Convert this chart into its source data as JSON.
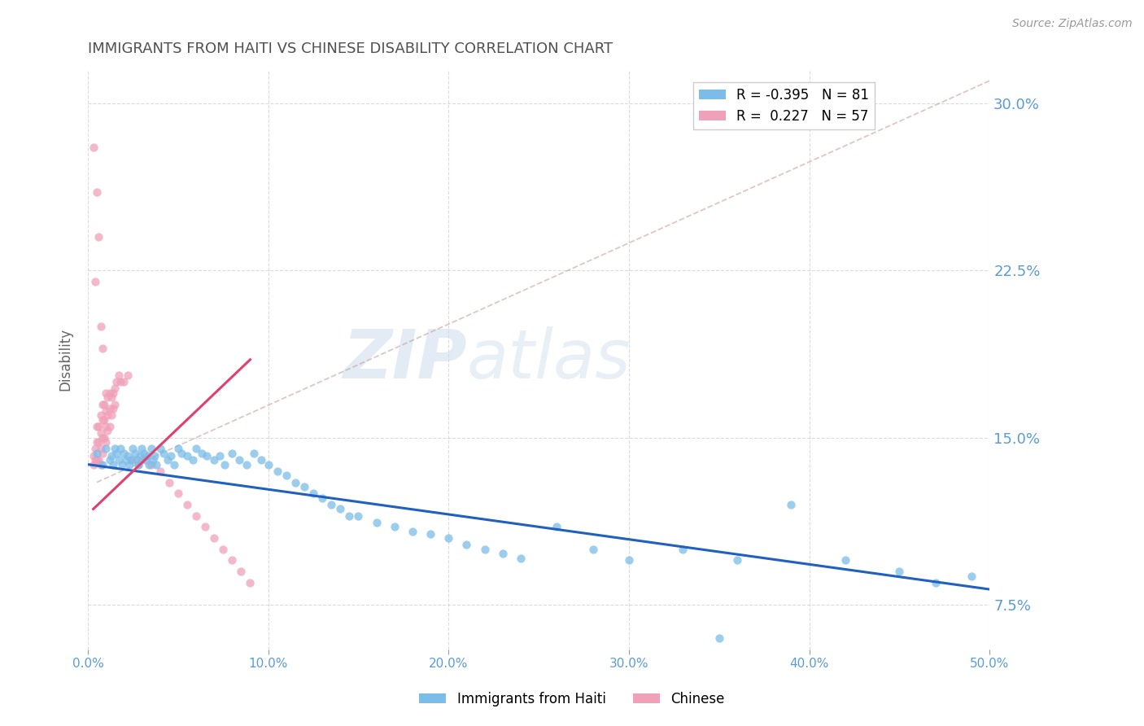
{
  "title": "IMMIGRANTS FROM HAITI VS CHINESE DISABILITY CORRELATION CHART",
  "source": "Source: ZipAtlas.com",
  "xlabel_haiti": "Immigrants from Haiti",
  "xlabel_chinese": "Chinese",
  "ylabel": "Disability",
  "xlim": [
    0.0,
    0.5
  ],
  "ylim": [
    0.055,
    0.315
  ],
  "xticks": [
    0.0,
    0.1,
    0.2,
    0.3,
    0.4,
    0.5
  ],
  "yticks": [
    0.075,
    0.15,
    0.225,
    0.3
  ],
  "ytick_labels": [
    "7.5%",
    "15.0%",
    "22.5%",
    "30.0%"
  ],
  "xtick_labels": [
    "0.0%",
    "10.0%",
    "20.0%",
    "30.0%",
    "40.0%",
    "50.0%"
  ],
  "haiti_color": "#7bbde8",
  "chinese_color": "#f0a0b8",
  "haiti_line_color": "#2060c0",
  "chinese_line_color": "#e04070",
  "R_haiti": -0.395,
  "N_haiti": 81,
  "R_chinese": 0.227,
  "N_chinese": 57,
  "haiti_scatter_x": [
    0.005,
    0.008,
    0.01,
    0.012,
    0.013,
    0.014,
    0.015,
    0.016,
    0.017,
    0.018,
    0.019,
    0.02,
    0.021,
    0.022,
    0.023,
    0.024,
    0.025,
    0.026,
    0.027,
    0.028,
    0.029,
    0.03,
    0.031,
    0.032,
    0.033,
    0.034,
    0.035,
    0.036,
    0.037,
    0.038,
    0.04,
    0.042,
    0.044,
    0.046,
    0.048,
    0.05,
    0.052,
    0.055,
    0.058,
    0.06,
    0.063,
    0.066,
    0.07,
    0.073,
    0.076,
    0.08,
    0.084,
    0.088,
    0.092,
    0.096,
    0.1,
    0.105,
    0.11,
    0.115,
    0.12,
    0.125,
    0.13,
    0.135,
    0.14,
    0.145,
    0.15,
    0.16,
    0.17,
    0.18,
    0.19,
    0.2,
    0.21,
    0.22,
    0.23,
    0.24,
    0.26,
    0.28,
    0.3,
    0.33,
    0.36,
    0.39,
    0.42,
    0.45,
    0.47,
    0.49,
    0.35
  ],
  "haiti_scatter_y": [
    0.143,
    0.138,
    0.145,
    0.14,
    0.142,
    0.138,
    0.145,
    0.143,
    0.14,
    0.145,
    0.138,
    0.143,
    0.14,
    0.142,
    0.138,
    0.14,
    0.145,
    0.143,
    0.14,
    0.138,
    0.142,
    0.145,
    0.143,
    0.14,
    0.142,
    0.138,
    0.145,
    0.14,
    0.142,
    0.138,
    0.145,
    0.143,
    0.14,
    0.142,
    0.138,
    0.145,
    0.143,
    0.142,
    0.14,
    0.145,
    0.143,
    0.142,
    0.14,
    0.142,
    0.138,
    0.143,
    0.14,
    0.138,
    0.143,
    0.14,
    0.138,
    0.135,
    0.133,
    0.13,
    0.128,
    0.125,
    0.123,
    0.12,
    0.118,
    0.115,
    0.115,
    0.112,
    0.11,
    0.108,
    0.107,
    0.105,
    0.102,
    0.1,
    0.098,
    0.096,
    0.11,
    0.1,
    0.095,
    0.1,
    0.095,
    0.12,
    0.095,
    0.09,
    0.085,
    0.088,
    0.06
  ],
  "chinese_scatter_x": [
    0.003,
    0.003,
    0.004,
    0.004,
    0.005,
    0.005,
    0.005,
    0.006,
    0.006,
    0.006,
    0.007,
    0.007,
    0.007,
    0.007,
    0.008,
    0.008,
    0.008,
    0.008,
    0.009,
    0.009,
    0.009,
    0.01,
    0.01,
    0.01,
    0.01,
    0.011,
    0.011,
    0.011,
    0.012,
    0.012,
    0.012,
    0.013,
    0.013,
    0.014,
    0.014,
    0.015,
    0.015,
    0.016,
    0.017,
    0.018,
    0.02,
    0.022,
    0.025,
    0.028,
    0.03,
    0.035,
    0.04,
    0.045,
    0.05,
    0.055,
    0.06,
    0.065,
    0.07,
    0.075,
    0.08,
    0.085,
    0.09
  ],
  "chinese_scatter_y": [
    0.142,
    0.138,
    0.145,
    0.14,
    0.155,
    0.148,
    0.14,
    0.155,
    0.148,
    0.14,
    0.16,
    0.152,
    0.145,
    0.138,
    0.165,
    0.158,
    0.15,
    0.143,
    0.165,
    0.158,
    0.15,
    0.17,
    0.162,
    0.155,
    0.148,
    0.168,
    0.16,
    0.153,
    0.17,
    0.163,
    0.155,
    0.168,
    0.16,
    0.17,
    0.163,
    0.172,
    0.165,
    0.175,
    0.178,
    0.175,
    0.175,
    0.178,
    0.14,
    0.138,
    0.14,
    0.138,
    0.135,
    0.13,
    0.125,
    0.12,
    0.115,
    0.11,
    0.105,
    0.1,
    0.095,
    0.09,
    0.085
  ],
  "chinese_high_x": [
    0.003,
    0.004,
    0.005,
    0.006,
    0.007,
    0.008
  ],
  "chinese_high_y": [
    0.28,
    0.22,
    0.26,
    0.24,
    0.2,
    0.19
  ],
  "watermark_zip": "ZIP",
  "watermark_atlas": "atlas",
  "background_color": "#ffffff",
  "grid_color": "#cccccc",
  "tick_label_color": "#5b9bd5",
  "title_color": "#505050"
}
